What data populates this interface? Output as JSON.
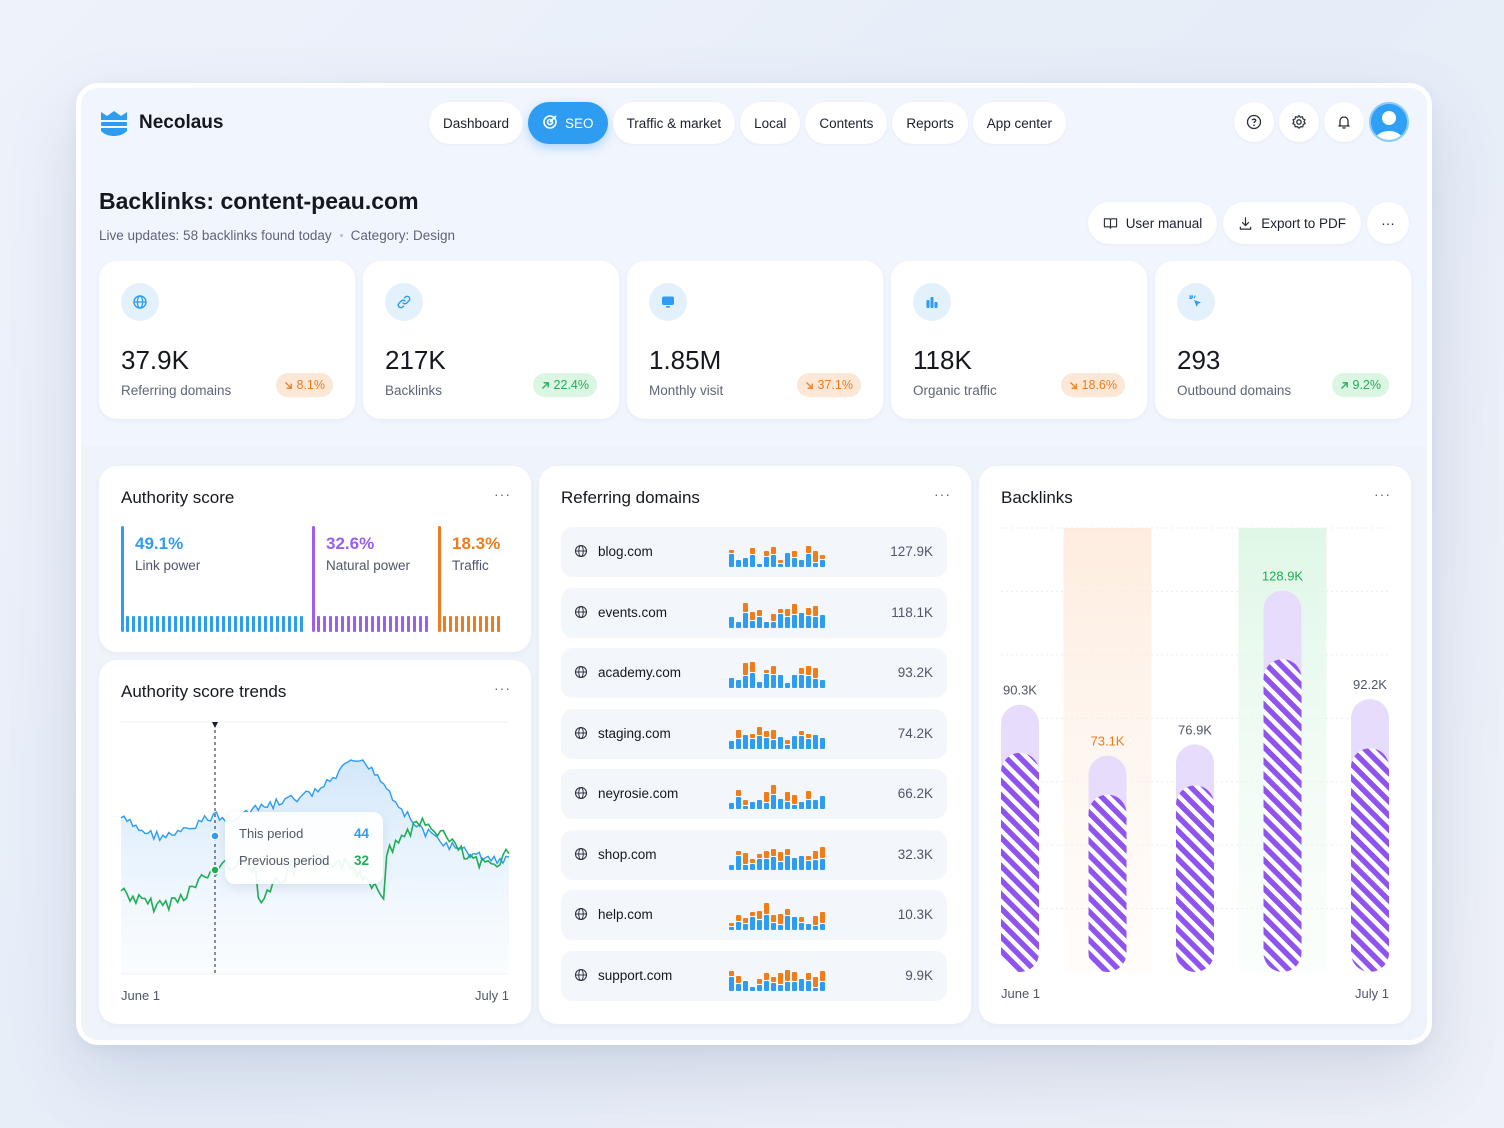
{
  "app": {
    "name": "Necolaus"
  },
  "nav": [
    {
      "label": "Dashboard",
      "active": false
    },
    {
      "label": "SEO",
      "active": true
    },
    {
      "label": "Traffic & market",
      "active": false
    },
    {
      "label": "Local",
      "active": false
    },
    {
      "label": "Contents",
      "active": false
    },
    {
      "label": "Reports",
      "active": false
    },
    {
      "label": "App center",
      "active": false
    }
  ],
  "header_icons": [
    "help-icon",
    "gear-icon",
    "bell-icon",
    "avatar"
  ],
  "page": {
    "title": "Backlinks: content-peau.com",
    "live_updates": "Live updates: 58 backlinks found today",
    "category": "Category: Design"
  },
  "actions": {
    "manual": "User manual",
    "export": "Export to PDF",
    "more": "···"
  },
  "kpis": [
    {
      "icon": "globe-icon",
      "value": "37.9K",
      "label": "Referring domains",
      "delta": "8.1%",
      "direction": "down"
    },
    {
      "icon": "link-icon",
      "value": "217K",
      "label": "Backlinks",
      "delta": "22.4%",
      "direction": "up"
    },
    {
      "icon": "monitor-icon",
      "value": "1.85M",
      "label": "Monthly visit",
      "delta": "37.1%",
      "direction": "down"
    },
    {
      "icon": "bar-chart-icon",
      "value": "118K",
      "label": "Organic traffic",
      "delta": "18.6%",
      "direction": "down"
    },
    {
      "icon": "cursor-click-icon",
      "value": "293",
      "label": "Outbound domains",
      "delta": "9.2%",
      "direction": "up"
    }
  ],
  "authority": {
    "title": "Authority score",
    "more": "···",
    "segments": [
      {
        "pct": "49.1%",
        "label": "Link power",
        "color": "#2e9cf0",
        "value": 49.1
      },
      {
        "pct": "32.6%",
        "label": "Natural power",
        "color": "#9a5ef0",
        "value": 32.6
      },
      {
        "pct": "18.3%",
        "label": "Traffic",
        "color": "#ee7b1e",
        "value": 18.3
      }
    ]
  },
  "trends": {
    "title": "Authority score trends",
    "more": "···",
    "x_start": "June 1",
    "x_end": "July 1",
    "tooltip": {
      "this_label": "This period",
      "this_value": "44",
      "prev_label": "Previous period",
      "prev_value": "32"
    },
    "colors": {
      "this": "#2e9cf0",
      "prev": "#1fae55"
    }
  },
  "referring": {
    "title": "Referring domains",
    "more": "···",
    "rows": [
      {
        "domain": "blog.com",
        "value": "127.9K"
      },
      {
        "domain": "events.com",
        "value": "118.1K"
      },
      {
        "domain": "academy.com",
        "value": "93.2K"
      },
      {
        "domain": "staging.com",
        "value": "74.2K"
      },
      {
        "domain": "neyrosie.com",
        "value": "66.2K"
      },
      {
        "domain": "shop.com",
        "value": "32.3K"
      },
      {
        "domain": "help.com",
        "value": "10.3K"
      },
      {
        "domain": "support.com",
        "value": "9.9K"
      }
    ]
  },
  "chart_data": {
    "type": "bar",
    "title": "Backlinks",
    "categories": [
      "",
      "",
      "",
      "",
      ""
    ],
    "values": [
      90.3,
      73.1,
      76.9,
      128.9,
      92.2
    ],
    "value_labels": [
      "90.3K",
      "73.1K",
      "76.9K",
      "128.9K",
      "92.2K"
    ],
    "highlight": [
      "none",
      "orange",
      "none",
      "green",
      "none"
    ],
    "x_start": "June 1",
    "x_end": "July 1",
    "ylim": [
      0,
      150
    ],
    "grid": true,
    "more": "···"
  }
}
